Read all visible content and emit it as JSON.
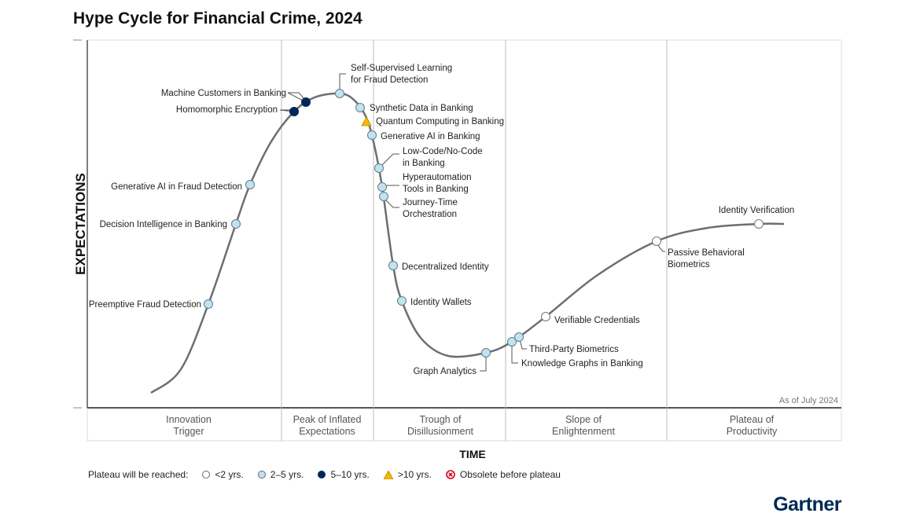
{
  "title": "Hype Cycle for Financial Crime, 2024",
  "y_axis_label": "EXPECTATIONS",
  "x_axis_label": "TIME",
  "as_of": "As of July 2024",
  "phases": [
    [
      "Innovation",
      "Trigger"
    ],
    [
      "Peak of Inflated",
      "Expectations"
    ],
    [
      "Trough of",
      "Disillusionment"
    ],
    [
      "Slope of",
      "Enlightenment"
    ],
    [
      "Plateau of",
      "Productivity"
    ]
  ],
  "technologies": [
    {
      "label": [
        "Preemptive Fraud Detection"
      ],
      "plateau": "2-5"
    },
    {
      "label": [
        "Decision Intelligence in Banking"
      ],
      "plateau": "2-5"
    },
    {
      "label": [
        "Generative AI in Fraud Detection"
      ],
      "plateau": "2-5"
    },
    {
      "label": [
        "Homomorphic Encryption"
      ],
      "plateau": "5-10"
    },
    {
      "label": [
        "Machine Customers in Banking"
      ],
      "plateau": "5-10"
    },
    {
      "label": [
        "Self-Supervised Learning",
        "for Fraud Detection"
      ],
      "plateau": "2-5"
    },
    {
      "label": [
        "Synthetic Data in Banking"
      ],
      "plateau": "2-5"
    },
    {
      "label": [
        "Quantum Computing in Banking"
      ],
      "plateau": ">10"
    },
    {
      "label": [
        "Generative AI in Banking"
      ],
      "plateau": "2-5"
    },
    {
      "label": [
        "Low-Code/No-Code",
        "in Banking"
      ],
      "plateau": "2-5"
    },
    {
      "label": [
        "Hyperautomation",
        "Tools in Banking"
      ],
      "plateau": "2-5"
    },
    {
      "label": [
        "Journey-Time",
        "Orchestration"
      ],
      "plateau": "2-5"
    },
    {
      "label": [
        "Decentralized Identity"
      ],
      "plateau": "2-5"
    },
    {
      "label": [
        "Identity Wallets"
      ],
      "plateau": "2-5"
    },
    {
      "label": [
        "Graph Analytics"
      ],
      "plateau": "2-5"
    },
    {
      "label": [
        "Knowledge Graphs in Banking"
      ],
      "plateau": "2-5"
    },
    {
      "label": [
        "Third-Party Biometrics"
      ],
      "plateau": "2-5"
    },
    {
      "label": [
        "Verifiable Credentials"
      ],
      "plateau": "<2"
    },
    {
      "label": [
        "Passive Behavioral",
        "Biometrics"
      ],
      "plateau": "<2"
    },
    {
      "label": [
        "Identity Verification"
      ],
      "plateau": "<2"
    }
  ],
  "legend": {
    "title": "Plateau will be reached:",
    "items": [
      {
        "label": "<2 yrs.",
        "key": "<2",
        "color": "#ffffff"
      },
      {
        "label": "2–5 yrs.",
        "key": "2-5",
        "color": "#bfe3f2"
      },
      {
        "label": "5–10 yrs.",
        "key": "5-10",
        "color": "#002856"
      },
      {
        "label": ">10 yrs.",
        "key": ">10",
        "color": "#f5b800"
      },
      {
        "label": "Obsolete before plateau",
        "key": "obsolete",
        "color": "#d0021b"
      }
    ]
  },
  "logo": "Gartner"
}
